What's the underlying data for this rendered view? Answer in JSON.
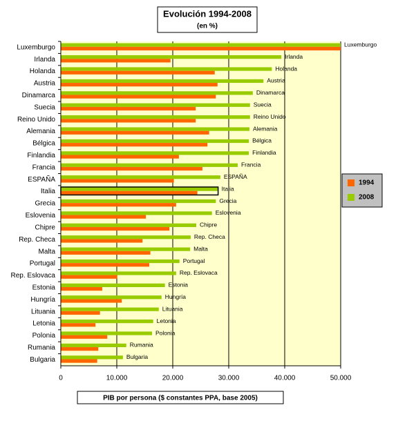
{
  "chart_data": {
    "type": "hbar",
    "title": "Evolución 1994-2008",
    "subtitle": "(en %)",
    "x_label": "PIB por persona ($ constantes PPA, base 2005)",
    "categories": [
      "Luxemburgo",
      "Irlanda",
      "Holanda",
      "Austria",
      "Dinamarca",
      "Suecia",
      "Reino Unido",
      "Alemania",
      "Bélgica",
      "Finlandia",
      "Francia",
      "ESPAÑA",
      "Italia",
      "Grecia",
      "Eslovenia",
      "Chipre",
      "Rep. Checa",
      "Malta",
      "Portugal",
      "Rep. Eslovaca",
      "Estonia",
      "Hungría",
      "Lituania",
      "Letonia",
      "Polonia",
      "Rumania",
      "Bulgaria"
    ],
    "series": [
      {
        "name": "1994",
        "color": "#ff6600",
        "values": [
          50000,
          19600,
          27500,
          28000,
          27700,
          24100,
          24100,
          26500,
          26200,
          21100,
          25300,
          20200,
          24400,
          20600,
          15200,
          19400,
          14600,
          16000,
          15800,
          10100,
          7400,
          10900,
          7000,
          6200,
          8300,
          6700,
          6500
        ]
      },
      {
        "name": "2008",
        "color": "#99cc00",
        "values": [
          50000,
          39400,
          37700,
          36200,
          34300,
          33800,
          33800,
          33700,
          33600,
          33600,
          31600,
          28500,
          28100,
          27700,
          27000,
          24200,
          23200,
          23100,
          21200,
          20600,
          18600,
          18000,
          17500,
          16500,
          16300,
          11700,
          11100
        ]
      }
    ],
    "xlim": [
      0,
      50000
    ],
    "xticks": [
      0,
      {
        "value": 10000,
        "label": "10.000"
      },
      {
        "value": 20000,
        "label": "20.000"
      },
      {
        "value": 30000,
        "label": "30.000"
      },
      {
        "value": 40000,
        "label": "40.000"
      },
      {
        "value": 50000,
        "label": "50.000"
      }
    ],
    "grid": true,
    "legend": "right"
  }
}
